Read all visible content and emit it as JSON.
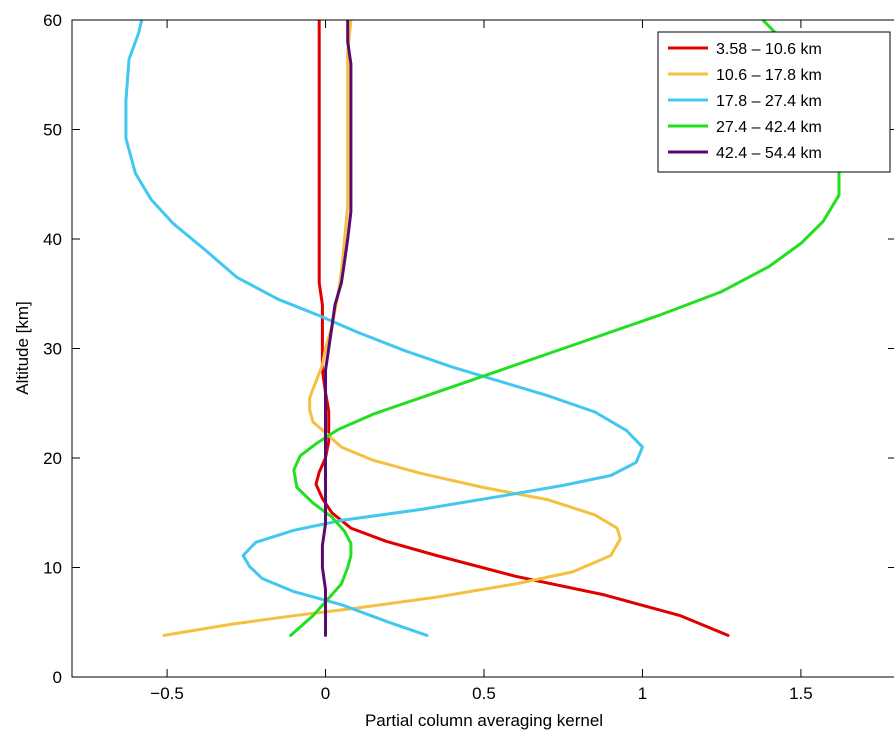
{
  "chart_data": {
    "type": "line",
    "title": "",
    "xlabel": "Partial column averaging kernel",
    "ylabel": "Altitude [km]",
    "xlim": [
      -0.8,
      1.8
    ],
    "ylim": [
      0,
      60
    ],
    "x_ticks": [
      -0.5,
      0,
      0.5,
      1,
      1.5
    ],
    "x_tick_labels": [
      "−0.5",
      "0",
      "0.5",
      "1",
      "1.5"
    ],
    "y_ticks": [
      0,
      10,
      20,
      30,
      40,
      50,
      60
    ],
    "y_tick_labels": [
      "0",
      "10",
      "20",
      "30",
      "40",
      "50",
      "60"
    ],
    "grid": false,
    "legend_position": "top-right",
    "series": [
      {
        "name": "3.58 – 10.6 km",
        "color": "#e00000",
        "points": [
          [
            1.27,
            3.8
          ],
          [
            1.12,
            5.6
          ],
          [
            0.88,
            7.5
          ],
          [
            0.6,
            9.2
          ],
          [
            0.35,
            11.1
          ],
          [
            0.19,
            12.4
          ],
          [
            0.08,
            13.6
          ],
          [
            0.02,
            15.0
          ],
          [
            -0.01,
            16.3
          ],
          [
            -0.03,
            17.6
          ],
          [
            -0.02,
            18.7
          ],
          [
            0.0,
            20.0
          ],
          [
            0.01,
            21.5
          ],
          [
            0.01,
            23.0
          ],
          [
            0.01,
            24.3
          ],
          [
            0.0,
            26.0
          ],
          [
            -0.01,
            28.0
          ],
          [
            -0.01,
            30.0
          ],
          [
            -0.01,
            32.0
          ],
          [
            -0.01,
            34.0
          ],
          [
            -0.02,
            36.0
          ],
          [
            -0.02,
            38.0
          ],
          [
            -0.02,
            40.0
          ],
          [
            -0.02,
            43.0
          ],
          [
            -0.02,
            46.0
          ],
          [
            -0.02,
            50.0
          ],
          [
            -0.02,
            54.0
          ],
          [
            -0.02,
            57.0
          ],
          [
            -0.02,
            60.0
          ]
        ]
      },
      {
        "name": "10.6 – 17.8 km",
        "color": "#f5c040",
        "points": [
          [
            -0.51,
            3.8
          ],
          [
            -0.3,
            4.8
          ],
          [
            -0.1,
            5.6
          ],
          [
            0.1,
            6.3
          ],
          [
            0.35,
            7.3
          ],
          [
            0.6,
            8.5
          ],
          [
            0.78,
            9.6
          ],
          [
            0.9,
            11.1
          ],
          [
            0.93,
            12.6
          ],
          [
            0.92,
            13.6
          ],
          [
            0.85,
            14.8
          ],
          [
            0.7,
            16.2
          ],
          [
            0.5,
            17.3
          ],
          [
            0.3,
            18.6
          ],
          [
            0.15,
            19.8
          ],
          [
            0.05,
            21.0
          ],
          [
            0.0,
            22.3
          ],
          [
            -0.04,
            23.3
          ],
          [
            -0.05,
            24.4
          ],
          [
            -0.05,
            25.5
          ],
          [
            -0.03,
            27.0
          ],
          [
            -0.01,
            28.5
          ],
          [
            0.0,
            30.0
          ],
          [
            0.02,
            32.0
          ],
          [
            0.03,
            33.5
          ],
          [
            0.04,
            35.0
          ],
          [
            0.05,
            37.0
          ],
          [
            0.06,
            40.0
          ],
          [
            0.07,
            43.0
          ],
          [
            0.07,
            46.0
          ],
          [
            0.07,
            50.0
          ],
          [
            0.07,
            54.0
          ],
          [
            0.07,
            57.0
          ],
          [
            0.08,
            60.0
          ]
        ]
      },
      {
        "name": "17.8 – 27.4 km",
        "color": "#40c8f0",
        "points": [
          [
            0.32,
            3.8
          ],
          [
            0.2,
            5.0
          ],
          [
            0.05,
            6.6
          ],
          [
            -0.1,
            7.8
          ],
          [
            -0.2,
            9.0
          ],
          [
            -0.24,
            10.1
          ],
          [
            -0.26,
            11.1
          ],
          [
            -0.22,
            12.3
          ],
          [
            -0.1,
            13.4
          ],
          [
            0.05,
            14.3
          ],
          [
            0.3,
            15.3
          ],
          [
            0.55,
            16.5
          ],
          [
            0.75,
            17.5
          ],
          [
            0.9,
            18.4
          ],
          [
            0.98,
            19.6
          ],
          [
            1.0,
            21.0
          ],
          [
            0.95,
            22.5
          ],
          [
            0.85,
            24.2
          ],
          [
            0.7,
            25.7
          ],
          [
            0.55,
            27.0
          ],
          [
            0.4,
            28.3
          ],
          [
            0.25,
            29.8
          ],
          [
            0.1,
            31.5
          ],
          [
            -0.02,
            33.0
          ],
          [
            -0.15,
            34.5
          ],
          [
            -0.28,
            36.5
          ],
          [
            -0.38,
            39.0
          ],
          [
            -0.48,
            41.4
          ],
          [
            -0.55,
            43.6
          ],
          [
            -0.6,
            46.0
          ],
          [
            -0.63,
            49.2
          ],
          [
            -0.63,
            52.6
          ],
          [
            -0.62,
            56.4
          ],
          [
            -0.59,
            58.8
          ],
          [
            -0.58,
            60.0
          ]
        ]
      },
      {
        "name": "27.4 – 42.4 km",
        "color": "#20e020",
        "points": [
          [
            -0.11,
            3.8
          ],
          [
            -0.04,
            5.6
          ],
          [
            0.01,
            7.2
          ],
          [
            0.05,
            8.5
          ],
          [
            0.07,
            10.0
          ],
          [
            0.08,
            11.1
          ],
          [
            0.08,
            12.2
          ],
          [
            0.06,
            13.3
          ],
          [
            0.02,
            14.6
          ],
          [
            -0.04,
            15.9
          ],
          [
            -0.09,
            17.3
          ],
          [
            -0.1,
            18.9
          ],
          [
            -0.08,
            20.2
          ],
          [
            -0.03,
            21.3
          ],
          [
            0.04,
            22.6
          ],
          [
            0.15,
            24.0
          ],
          [
            0.35,
            26.0
          ],
          [
            0.55,
            28.0
          ],
          [
            0.8,
            30.5
          ],
          [
            1.05,
            33.0
          ],
          [
            1.25,
            35.2
          ],
          [
            1.4,
            37.5
          ],
          [
            1.5,
            39.6
          ],
          [
            1.57,
            41.6
          ],
          [
            1.62,
            44.0
          ],
          [
            1.62,
            46.2
          ],
          [
            1.58,
            48.8
          ],
          [
            1.52,
            51.5
          ],
          [
            1.48,
            54.2
          ],
          [
            1.47,
            56.7
          ],
          [
            1.42,
            58.8
          ],
          [
            1.38,
            60.0
          ]
        ]
      },
      {
        "name": "42.4 – 54.4 km",
        "color": "#5a0a6e",
        "points": [
          [
            0.0,
            3.8
          ],
          [
            0.0,
            6.0
          ],
          [
            0.0,
            8.0
          ],
          [
            -0.01,
            10.0
          ],
          [
            -0.01,
            12.0
          ],
          [
            0.0,
            14.0
          ],
          [
            0.0,
            16.0
          ],
          [
            0.0,
            18.0
          ],
          [
            0.0,
            20.0
          ],
          [
            0.0,
            22.0
          ],
          [
            0.0,
            24.0
          ],
          [
            0.0,
            26.0
          ],
          [
            0.0,
            28.0
          ],
          [
            0.01,
            30.0
          ],
          [
            0.02,
            32.0
          ],
          [
            0.03,
            34.0
          ],
          [
            0.05,
            36.0
          ],
          [
            0.06,
            38.0
          ],
          [
            0.07,
            40.0
          ],
          [
            0.08,
            42.5
          ],
          [
            0.08,
            45.0
          ],
          [
            0.08,
            48.0
          ],
          [
            0.08,
            51.0
          ],
          [
            0.08,
            54.0
          ],
          [
            0.08,
            56.0
          ],
          [
            0.07,
            58.0
          ],
          [
            0.07,
            60.0
          ]
        ]
      }
    ]
  }
}
